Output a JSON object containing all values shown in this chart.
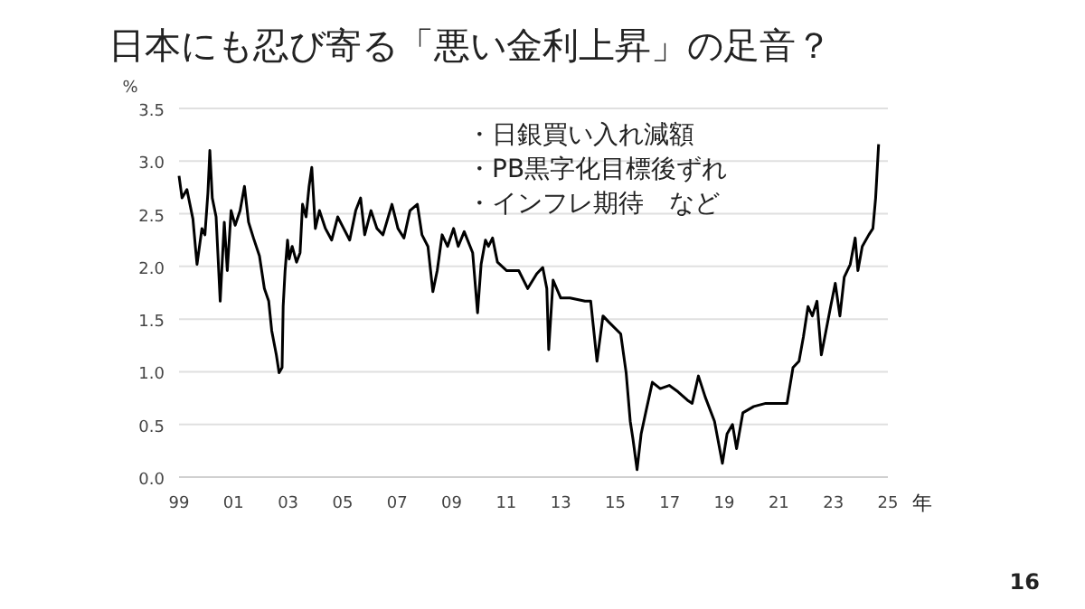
{
  "chart_data": {
    "type": "line",
    "title": "日本にも忍び寄る「悪い金利上昇」の足音？",
    "ylabel": "%",
    "xlabel": "年",
    "annotations": [
      "・日銀買い入れ減額",
      "・PB黒字化目標後ずれ",
      "・インフレ期待　など",
      "16"
    ],
    "x": [
      1999.0,
      1999.11,
      1999.29,
      1999.51,
      1999.62,
      1999.66,
      1999.84,
      1999.95,
      2000.06,
      2000.13,
      2000.22,
      2000.36,
      2000.51,
      2000.66,
      2000.77,
      2000.91,
      2001.06,
      2001.24,
      2001.4,
      2001.55,
      2001.73,
      2001.95,
      2002.13,
      2002.29,
      2002.4,
      2002.57,
      2002.67,
      2002.78,
      2002.82,
      2002.89,
      2002.98,
      2003.04,
      2003.15,
      2003.31,
      2003.44,
      2003.53,
      2003.66,
      2003.77,
      2003.87,
      2004.0,
      2004.15,
      2004.37,
      2004.6,
      2004.82,
      2005.04,
      2005.26,
      2005.48,
      2005.66,
      2005.81,
      2006.04,
      2006.26,
      2006.48,
      2006.81,
      2007.03,
      2007.25,
      2007.47,
      2007.74,
      2007.91,
      2008.13,
      2008.31,
      2008.47,
      2008.65,
      2008.85,
      2009.07,
      2009.24,
      2009.46,
      2009.77,
      2009.95,
      2010.08,
      2010.24,
      2010.35,
      2010.5,
      2010.68,
      2011.02,
      2011.46,
      2011.79,
      2012.12,
      2012.34,
      2012.49,
      2012.56,
      2012.72,
      2013.0,
      2013.34,
      2013.89,
      2014.1,
      2014.33,
      2014.55,
      2014.77,
      2015.2,
      2015.4,
      2015.55,
      2015.65,
      2015.8,
      2015.95,
      2016.14,
      2016.36,
      2016.65,
      2016.98,
      2017.3,
      2017.65,
      2017.82,
      2018.05,
      2018.3,
      2018.64,
      2018.93,
      2019.1,
      2019.3,
      2019.45,
      2019.68,
      2020.08,
      2020.52,
      2020.96,
      2021.3,
      2021.52,
      2021.74,
      2021.9,
      2022.07,
      2022.23,
      2022.4,
      2022.56,
      2022.73,
      2022.9,
      2023.07,
      2023.24,
      2023.4,
      2023.62,
      2023.8,
      2023.9,
      2024.06,
      2024.3,
      2024.45,
      2024.55,
      2024.66
    ],
    "values": [
      2.86,
      2.65,
      2.73,
      2.45,
      2.13,
      2.02,
      2.36,
      2.3,
      2.7,
      3.1,
      2.65,
      2.47,
      1.67,
      2.42,
      1.96,
      2.53,
      2.39,
      2.53,
      2.76,
      2.42,
      2.27,
      2.1,
      1.79,
      1.67,
      1.39,
      1.16,
      0.99,
      1.04,
      1.62,
      1.96,
      2.25,
      2.07,
      2.19,
      2.04,
      2.13,
      2.59,
      2.47,
      2.76,
      2.94,
      2.36,
      2.53,
      2.36,
      2.25,
      2.47,
      2.36,
      2.25,
      2.53,
      2.65,
      2.3,
      2.53,
      2.36,
      2.3,
      2.59,
      2.36,
      2.27,
      2.53,
      2.59,
      2.3,
      2.19,
      1.76,
      1.96,
      2.3,
      2.19,
      2.36,
      2.19,
      2.33,
      2.13,
      1.56,
      2.02,
      2.25,
      2.19,
      2.27,
      2.04,
      1.96,
      1.96,
      1.79,
      1.93,
      1.99,
      1.79,
      1.21,
      1.87,
      1.7,
      1.7,
      1.67,
      1.67,
      1.1,
      1.53,
      1.47,
      1.36,
      0.99,
      0.53,
      0.36,
      0.07,
      0.41,
      0.64,
      0.9,
      0.84,
      0.87,
      0.81,
      0.73,
      0.7,
      0.96,
      0.76,
      0.53,
      0.13,
      0.41,
      0.5,
      0.27,
      0.61,
      0.67,
      0.7,
      0.7,
      0.7,
      1.04,
      1.1,
      1.33,
      1.62,
      1.53,
      1.67,
      1.16,
      1.39,
      1.62,
      1.84,
      1.53,
      1.9,
      2.02,
      2.27,
      1.96,
      2.19,
      2.3,
      2.36,
      2.65,
      3.16
    ],
    "color": "#000000",
    "grid": "y",
    "marker": "none",
    "line_style": "solid",
    "xlim": [
      1999,
      2025
    ],
    "ylim": [
      0,
      3.5
    ],
    "xticks": [
      {
        "value": 1999,
        "label": "99"
      },
      {
        "value": 2001,
        "label": "01"
      },
      {
        "value": 2003,
        "label": "03"
      },
      {
        "value": 2005,
        "label": "05"
      },
      {
        "value": 2007,
        "label": "07"
      },
      {
        "value": 2009,
        "label": "09"
      },
      {
        "value": 2011,
        "label": "11"
      },
      {
        "value": 2013,
        "label": "13"
      },
      {
        "value": 2015,
        "label": "15"
      },
      {
        "value": 2017,
        "label": "17"
      },
      {
        "value": 2019,
        "label": "19"
      },
      {
        "value": 2021,
        "label": "21"
      },
      {
        "value": 2023,
        "label": "23"
      },
      {
        "value": 2025,
        "label": "25"
      }
    ],
    "yticks": [
      {
        "value": 0,
        "label": "0.0"
      },
      {
        "value": 0.5,
        "label": "0.5"
      },
      {
        "value": 1,
        "label": "1.0"
      },
      {
        "value": 1.5,
        "label": "1.5"
      },
      {
        "value": 2,
        "label": "2.0"
      },
      {
        "value": 2.5,
        "label": "2.5"
      },
      {
        "value": 3,
        "label": "3.0"
      },
      {
        "value": 3.5,
        "label": "3.5"
      }
    ]
  }
}
